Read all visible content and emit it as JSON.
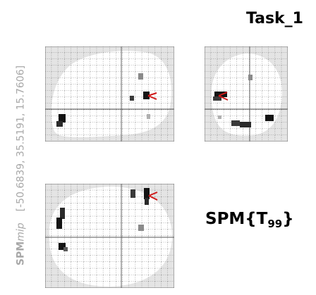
{
  "figure": {
    "task_title": "Task_1",
    "mip_prefix": "SPM",
    "mip_suffix": "mip",
    "coords_text": "[-50.6839, 35.5191, 15.7606]",
    "stat_prefix": "SPM{T",
    "stat_df": "99",
    "stat_suffix": "}"
  },
  "colors": {
    "outside_brain": "#e4e4e4",
    "inside_brain": "#ffffff",
    "grid": "#6a6a6a",
    "cursor": "#d01818",
    "blob_dark": "#141414",
    "blob_mid": "#5a5a5a",
    "blob_light": "#a0a0a0"
  }
}
